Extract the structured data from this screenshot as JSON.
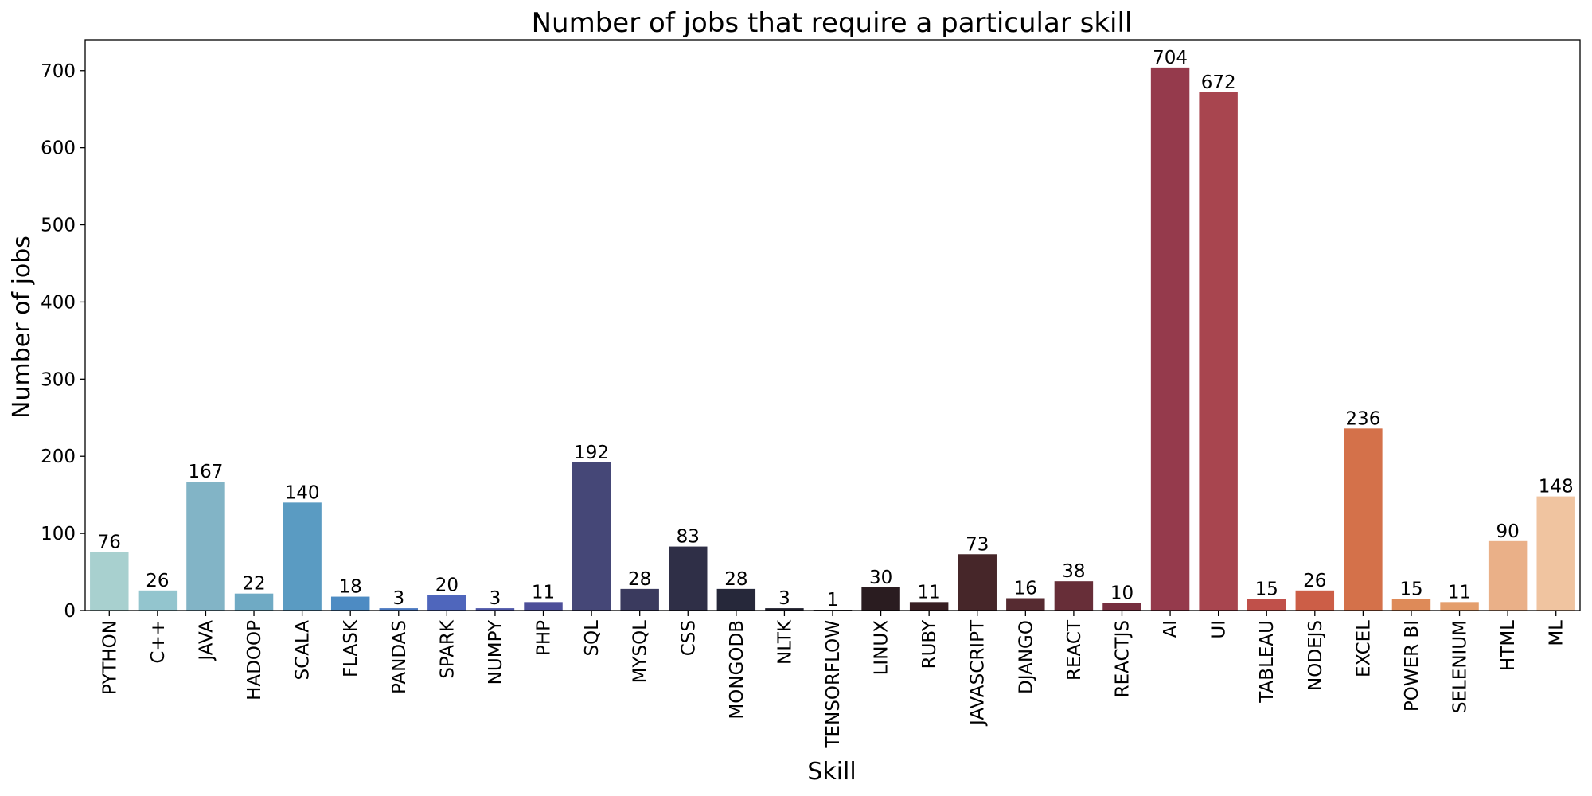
{
  "chart_data": {
    "type": "bar",
    "title": "Number of jobs that require a particular skill",
    "xlabel": "Skill",
    "ylabel": "Number of jobs",
    "ylim": [
      0,
      740
    ],
    "yticks": [
      0,
      100,
      200,
      300,
      400,
      500,
      600,
      700
    ],
    "grid": false,
    "categories": [
      "PYTHON",
      "C++",
      "JAVA",
      "HADOOP",
      "SCALA",
      "FLASK",
      "PANDAS",
      "SPARK",
      "NUMPY",
      "PHP",
      "SQL",
      "MYSQL",
      "CSS",
      "MONGODB",
      "NLTK",
      "TENSORFLOW",
      "LINUX",
      "RUBY",
      "JAVASCRIPT",
      "DJANGO",
      "REACT",
      "REACTJS",
      "AI",
      "UI",
      "TABLEAU",
      "NODEJS",
      "EXCEL",
      "POWER BI",
      "SELENIUM",
      "HTML",
      "ML"
    ],
    "values": [
      76,
      26,
      167,
      22,
      140,
      18,
      3,
      20,
      3,
      11,
      192,
      28,
      83,
      28,
      3,
      1,
      30,
      11,
      73,
      16,
      38,
      10,
      704,
      672,
      15,
      26,
      236,
      15,
      11,
      90,
      148
    ],
    "colors": [
      "#a8d0cf",
      "#93c5ce",
      "#82b4c6",
      "#6faac4",
      "#5a9bc2",
      "#4d8bc3",
      "#4b79c0",
      "#4f66bc",
      "#4f58a8",
      "#4d4f99",
      "#454777",
      "#3a3a5e",
      "#2f2f47",
      "#26283a",
      "#1f1f2c",
      "#1f1a22",
      "#2a1c20",
      "#381f23",
      "#462629",
      "#562b31",
      "#672e38",
      "#772f3f",
      "#953a4c",
      "#a8454f",
      "#c0504a",
      "#cc5e47",
      "#d4714a",
      "#de8a58",
      "#e49e6c",
      "#eab088",
      "#f0c4a0"
    ]
  }
}
